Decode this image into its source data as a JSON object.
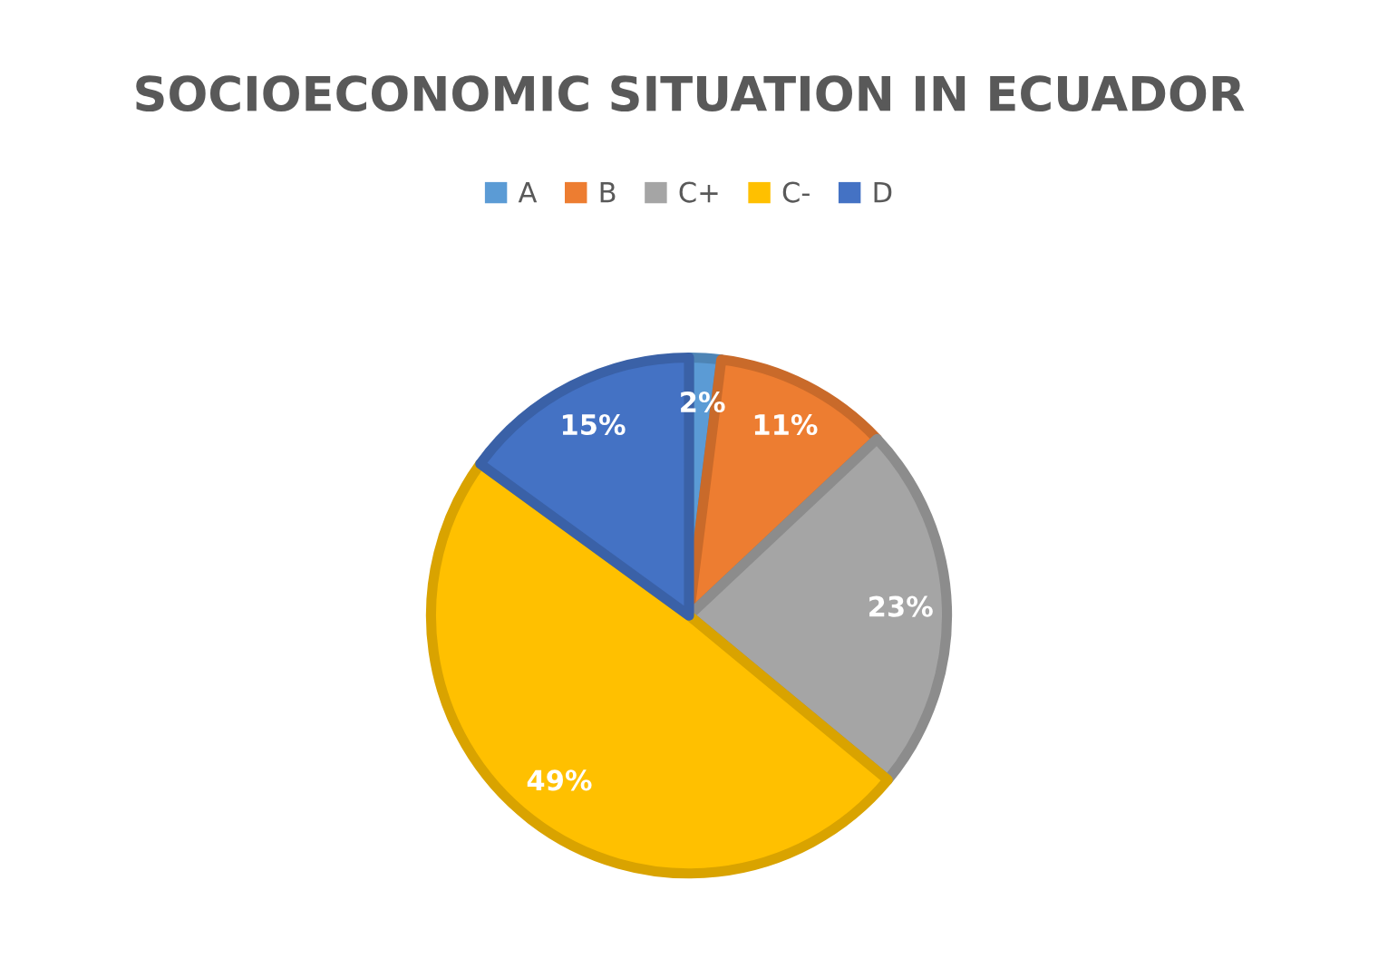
{
  "chart_data": {
    "type": "pie",
    "title": "SOCIOECONOMIC SITUATION IN ECUADOR",
    "categories": [
      "A",
      "B",
      "C+",
      "C-",
      "D"
    ],
    "values": [
      2,
      11,
      23,
      49,
      15
    ],
    "colors": [
      "#5b9bd5",
      "#ed7d31",
      "#a5a5a5",
      "#ffc000",
      "#4472c4"
    ],
    "value_labels": [
      "2%",
      "11%",
      "23%",
      "49%",
      "15%"
    ],
    "legend": "top"
  }
}
